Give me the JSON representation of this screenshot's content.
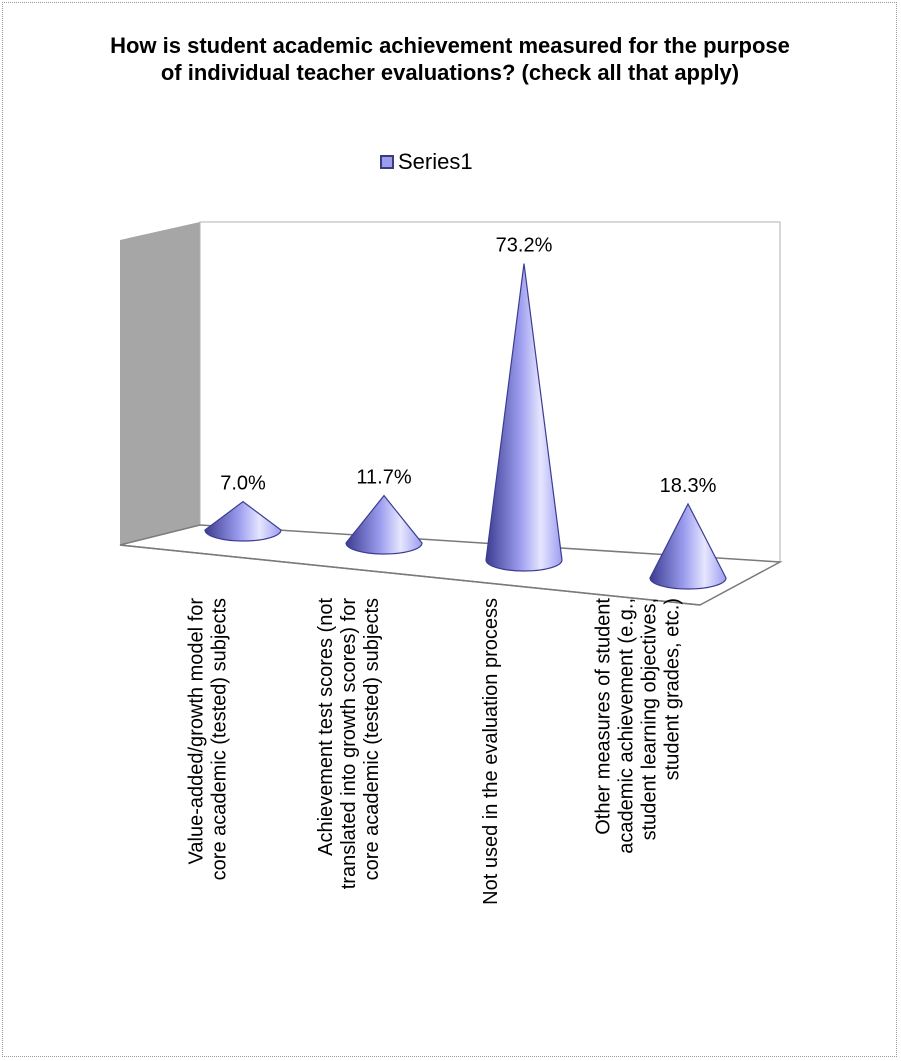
{
  "chart_data": {
    "type": "bar",
    "title": "How is student academic achievement measured for the purpose of individual teacher evaluations? (check all that apply)",
    "categories": [
      [
        "Value-added/growth model for",
        "core academic (tested) subjects"
      ],
      [
        "Achievement test scores (not",
        "translated into growth scores) for",
        "core academic (tested) subjects"
      ],
      [
        "Not used in the evaluation process"
      ],
      [
        "Other measures of student",
        "academic achievement (e.g.,",
        "student learning objectives,",
        "student grades, etc.)"
      ]
    ],
    "series": [
      {
        "name": "Series1",
        "values": [
          7.0,
          11.7,
          73.2,
          18.3
        ],
        "labels": [
          "7.0%",
          "11.7%",
          "73.2%",
          "18.3%"
        ]
      }
    ],
    "bar_shape": "cone",
    "legend_position": "top",
    "ylim": [
      0,
      80
    ],
    "grid": false,
    "colors": {
      "series": "#9d9df0",
      "series_dark": "#3c3c90",
      "series_light": "#e6e6ff",
      "side_wall": "#a6a6a6",
      "frame": "#7a7a7a"
    }
  }
}
